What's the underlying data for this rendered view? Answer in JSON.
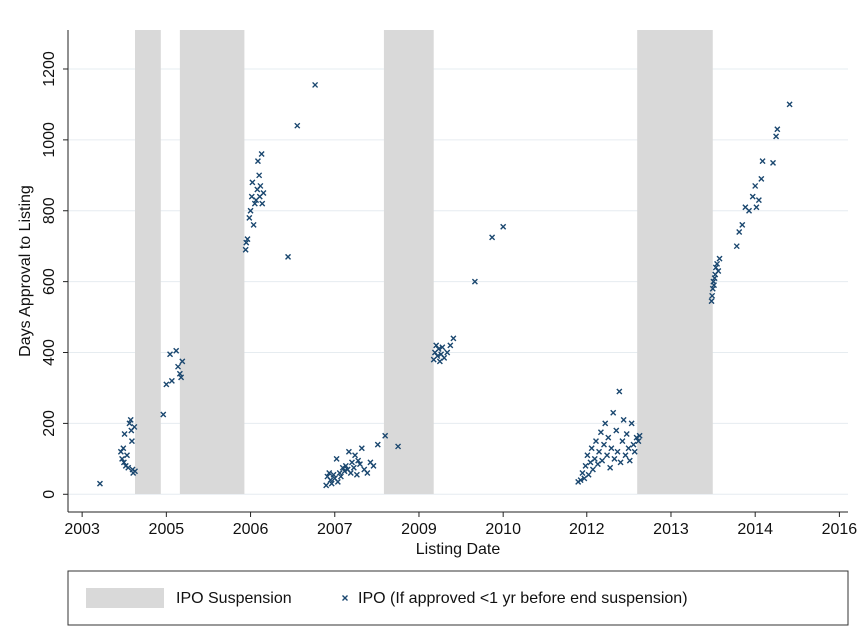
{
  "chart_data": {
    "type": "scatter",
    "xlabel": "Listing Date",
    "ylabel": "Days Approval to Listing",
    "xlim": [
      2003.58,
      2016.27
    ],
    "ylim": [
      -50,
      1310
    ],
    "xticks": [
      {
        "value": 2003.81,
        "label": "2003"
      },
      {
        "value": 2005.18,
        "label": "2005"
      },
      {
        "value": 2006.55,
        "label": "2006"
      },
      {
        "value": 2007.92,
        "label": "2007"
      },
      {
        "value": 2009.29,
        "label": "2009"
      },
      {
        "value": 2010.66,
        "label": "2010"
      },
      {
        "value": 2012.02,
        "label": "2012"
      },
      {
        "value": 2013.39,
        "label": "2013"
      },
      {
        "value": 2014.76,
        "label": "2014"
      },
      {
        "value": 2016.13,
        "label": "2016"
      }
    ],
    "yticks": [
      0,
      200,
      400,
      600,
      800,
      1000,
      1200
    ],
    "grid": true,
    "legend": "bottom",
    "shaded": {
      "name": "IPO Suspension",
      "color": "#d9d9d9",
      "x": [
        [
          2004.67,
          2005.09
        ],
        [
          2005.4,
          2006.45
        ],
        [
          2008.72,
          2009.53
        ],
        [
          2012.84,
          2014.07
        ]
      ]
    },
    "series": [
      {
        "name": "IPO (If approved <1 yr before end suspension)",
        "color": "#1a476f",
        "x": [
          2004.1,
          2004.44,
          2004.46,
          2004.48,
          2004.49,
          2004.5,
          2004.52,
          2004.54,
          2004.56,
          2004.58,
          2004.6,
          2004.61,
          2004.62,
          2004.63,
          2004.64,
          2004.66,
          2004.67,
          2005.13,
          2005.18,
          2005.27,
          2005.24,
          2005.34,
          2005.37,
          2005.4,
          2005.44,
          2005.42,
          2006.47,
          2006.48,
          2006.5,
          2006.53,
          2006.55,
          2006.57,
          2006.58,
          2006.6,
          2006.62,
          2006.64,
          2006.66,
          2006.67,
          2006.69,
          2006.7,
          2006.71,
          2006.73,
          2006.74,
          2006.76,
          2007.16,
          2007.31,
          2007.6,
          2007.78,
          2007.8,
          2007.83,
          2007.85,
          2007.87,
          2007.9,
          2007.92,
          2007.95,
          2007.97,
          2008.0,
          2008.02,
          2008.05,
          2008.08,
          2008.1,
          2008.13,
          2008.15,
          2008.18,
          2008.2,
          2008.23,
          2008.25,
          2008.28,
          2008.3,
          2008.33,
          2008.36,
          2008.4,
          2008.45,
          2008.5,
          2008.55,
          2008.62,
          2008.74,
          2008.95,
          2009.53,
          2009.55,
          2009.57,
          2009.59,
          2009.61,
          2009.63,
          2009.65,
          2009.67,
          2009.7,
          2009.75,
          2009.8,
          2009.85,
          2010.2,
          2010.48,
          2010.66,
          2011.88,
          2011.92,
          2011.95,
          2011.98,
          2012.0,
          2012.03,
          2012.05,
          2012.08,
          2012.1,
          2012.12,
          2012.15,
          2012.17,
          2012.2,
          2012.22,
          2012.25,
          2012.27,
          2012.3,
          2012.32,
          2012.35,
          2012.37,
          2012.4,
          2012.42,
          2012.45,
          2012.47,
          2012.5,
          2012.52,
          2012.55,
          2012.57,
          2012.6,
          2012.62,
          2012.65,
          2012.67,
          2012.7,
          2012.72,
          2012.75,
          2012.78,
          2012.8,
          2012.83,
          2012.86,
          2012.88,
          2014.05,
          2014.06,
          2014.07,
          2014.08,
          2014.09,
          2014.1,
          2014.11,
          2014.12,
          2014.14,
          2014.16,
          2014.18,
          2014.46,
          2014.5,
          2014.55,
          2014.6,
          2014.66,
          2014.72,
          2014.76,
          2014.78,
          2014.82,
          2014.86,
          2014.88,
          2015.05,
          2015.1,
          2015.12,
          2015.32
        ],
        "values": [
          30,
          120,
          100,
          130,
          90,
          170,
          80,
          110,
          75,
          200,
          210,
          180,
          150,
          70,
          60,
          190,
          65,
          225,
          310,
          320,
          395,
          405,
          360,
          340,
          375,
          330,
          690,
          710,
          720,
          780,
          800,
          840,
          880,
          760,
          820,
          830,
          860,
          940,
          900,
          840,
          870,
          960,
          820,
          850,
          670,
          1040,
          1155,
          25,
          50,
          60,
          40,
          30,
          55,
          45,
          100,
          35,
          60,
          50,
          75,
          65,
          80,
          70,
          120,
          60,
          90,
          75,
          110,
          55,
          95,
          85,
          130,
          70,
          60,
          90,
          80,
          140,
          165,
          135,
          380,
          400,
          420,
          390,
          410,
          375,
          395,
          415,
          385,
          400,
          420,
          440,
          600,
          725,
          755,
          35,
          40,
          60,
          45,
          80,
          110,
          55,
          90,
          130,
          70,
          100,
          150,
          85,
          120,
          175,
          95,
          140,
          200,
          110,
          160,
          75,
          130,
          230,
          100,
          180,
          120,
          290,
          90,
          150,
          210,
          110,
          170,
          130,
          95,
          200,
          140,
          120,
          160,
          150,
          165,
          545,
          560,
          580,
          600,
          590,
          610,
          620,
          640,
          650,
          630,
          665,
          700,
          740,
          760,
          810,
          800,
          840,
          870,
          810,
          830,
          890,
          940,
          935,
          1010,
          1030,
          1100
        ]
      }
    ]
  }
}
